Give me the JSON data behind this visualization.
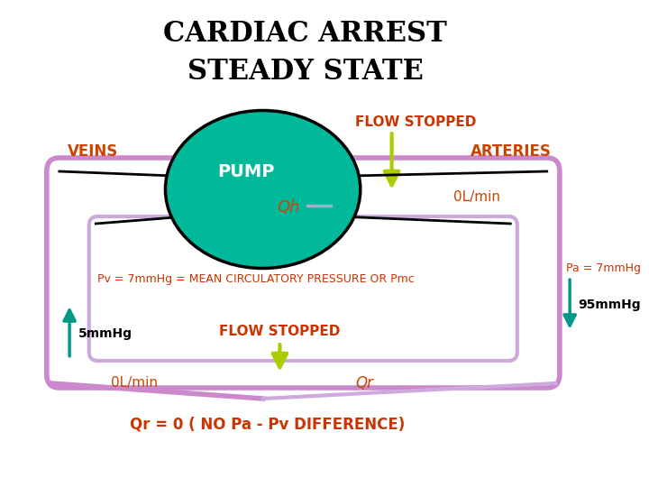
{
  "title_line1": "CARDIAC ARREST",
  "title_line2": "STEADY STATE",
  "title_color": "#000000",
  "title_fontsize": 22,
  "pump_label": "PUMP",
  "pump_color": "#00B89A",
  "pump_outline": "#000000",
  "veins_label": "VEINS",
  "veins_color": "#CC4400",
  "arteries_label": "ARTERIES",
  "arteries_color": "#CC4400",
  "flow_stopped_color": "#CC3300",
  "outer_circuit_color": "#CC88CC",
  "inner_circuit_color": "#CCAADD",
  "qh_label": "Qh",
  "label_color": "#CC4400",
  "zero_lmin_top": "0L/min",
  "flow_stopped_top": "FLOW STOPPED",
  "pv_label": "Pv = 7mmHg = MEAN CIRCULATORY PRESSURE OR Pmc",
  "pv_color": "#CC3300",
  "pa_label": "Pa = 7mmHg",
  "pa_color": "#CC3300",
  "arrow95_label": "95mmHg",
  "arrow5_label": "5mmHg",
  "flow_stopped_bottom": "FLOW STOPPED",
  "zero_lmin_bottom": "0L/min",
  "qr_label": "Qr",
  "bottom_eq": "Qr = 0 ( NO Pa - Pv DIFFERENCE)",
  "bottom_eq_color": "#CC3300",
  "teal_arrow_color": "#009988",
  "lime_arrow_color": "#AACC00",
  "background": "#FFFFFF",
  "valve_line_color": "#000000",
  "qh_line_color": "#AAAACC"
}
